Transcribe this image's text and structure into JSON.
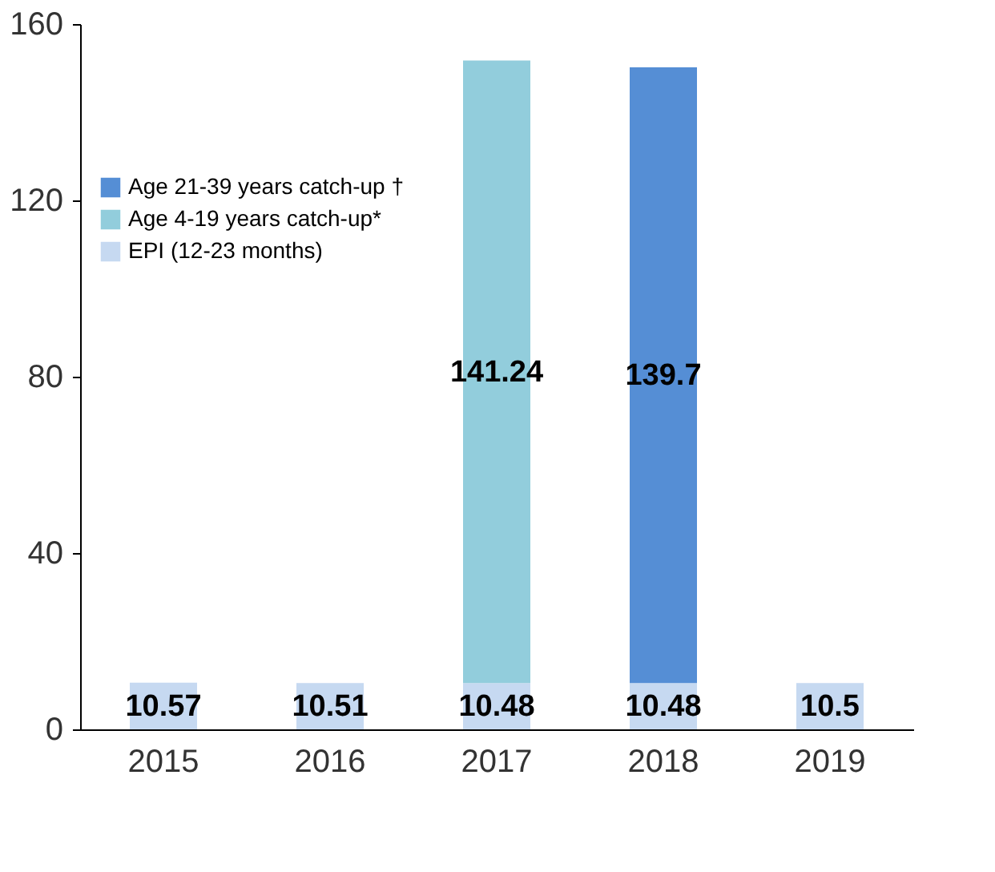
{
  "chart_data": {
    "type": "bar",
    "stacked": true,
    "categories": [
      "2015",
      "2016",
      "2017",
      "2018",
      "2019"
    ],
    "series": [
      {
        "name": "EPI (12-23 months)",
        "color": "#c6d9f1",
        "values": [
          10.57,
          10.51,
          10.48,
          10.48,
          10.5
        ]
      },
      {
        "name": "Age 4-19 years catch-up*",
        "color": "#92cddc",
        "values": [
          null,
          null,
          141.24,
          null,
          null
        ]
      },
      {
        "name": "Age 21-39 years catch-up †",
        "color": "#558ed5",
        "values": [
          null,
          null,
          null,
          139.7,
          null
        ]
      }
    ],
    "ylim": [
      0,
      160
    ],
    "yticks": [
      0,
      40,
      80,
      120,
      160
    ],
    "grid": false,
    "legend": "top left",
    "data_labels": true
  }
}
